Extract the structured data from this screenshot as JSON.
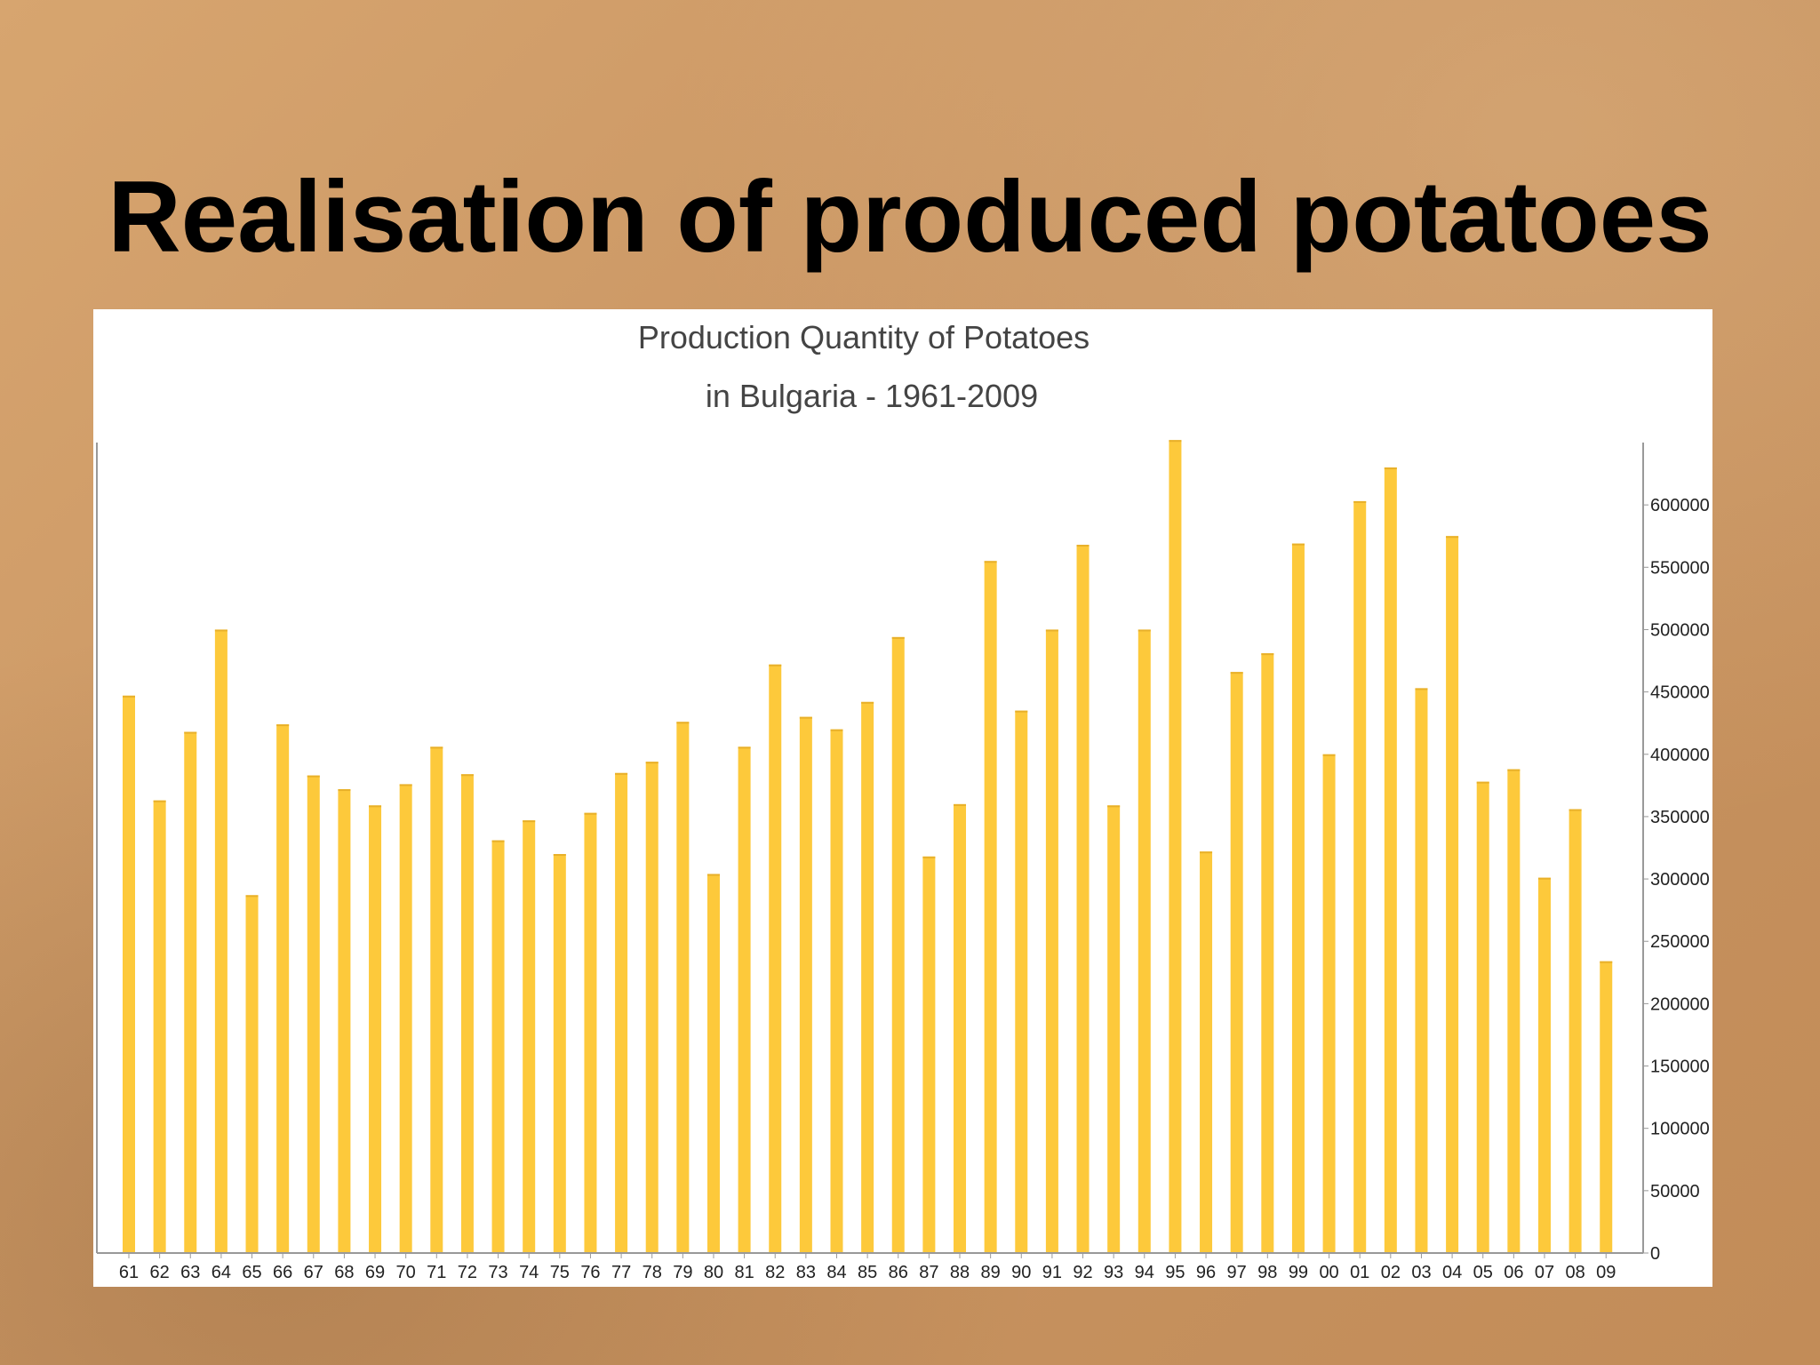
{
  "slide": {
    "title": "Realisation of produced potatoes"
  },
  "colors": {
    "background": "#c99563",
    "bar": "#fdc93b",
    "axis": "#999999",
    "panel": "#ffffff"
  },
  "chart_data": {
    "type": "bar",
    "title_lines": [
      "Production Quantity of Potatoes",
      "in Bulgaria - 1961-2009"
    ],
    "xlabel": "",
    "ylabel": "",
    "y_axis_side": "right",
    "ylim": [
      0,
      650000
    ],
    "yticks": [
      0,
      50000,
      100000,
      150000,
      200000,
      250000,
      300000,
      350000,
      400000,
      450000,
      500000,
      550000,
      600000
    ],
    "ytick_labels": [
      "0",
      "50000",
      "100000",
      "150000",
      "200000",
      "250000",
      "300000",
      "350000",
      "400000",
      "450000",
      "500000",
      "550000",
      "600000"
    ],
    "grid": false,
    "categories": [
      "61",
      "62",
      "63",
      "64",
      "65",
      "66",
      "67",
      "68",
      "69",
      "70",
      "71",
      "72",
      "73",
      "74",
      "75",
      "76",
      "77",
      "78",
      "79",
      "80",
      "81",
      "82",
      "83",
      "84",
      "85",
      "86",
      "87",
      "88",
      "89",
      "90",
      "91",
      "92",
      "93",
      "94",
      "95",
      "96",
      "97",
      "98",
      "99",
      "00",
      "01",
      "02",
      "03",
      "04",
      "05",
      "06",
      "07",
      "08",
      "09"
    ],
    "values": [
      447000,
      363000,
      418000,
      500000,
      287000,
      424000,
      383000,
      372000,
      359000,
      376000,
      406000,
      384000,
      331000,
      347000,
      320000,
      353000,
      385000,
      394000,
      426000,
      304000,
      406000,
      472000,
      430000,
      420000,
      442000,
      494000,
      318000,
      360000,
      555000,
      435000,
      500000,
      568000,
      359000,
      500000,
      652000,
      322000,
      466000,
      481000,
      569000,
      400000,
      603000,
      630000,
      453000,
      575000,
      378000,
      388000,
      301000,
      356000,
      234000
    ]
  }
}
